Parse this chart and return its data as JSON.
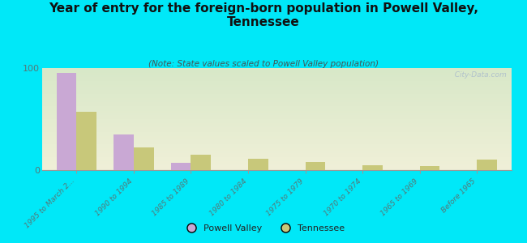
{
  "title": "Year of entry for the foreign-born population in Powell Valley,\nTennessee",
  "subtitle": "(Note: State values scaled to Powell Valley population)",
  "categories": [
    "1995 to March 2...",
    "1990 to 1994",
    "1985 to 1989",
    "1980 to 1984",
    "1975 to 1979",
    "1970 to 1974",
    "1965 to 1969",
    "Before 1965"
  ],
  "powell_valley": [
    95,
    35,
    7,
    0,
    0,
    0,
    0,
    0
  ],
  "tennessee": [
    57,
    22,
    15,
    11,
    8,
    5,
    4,
    10
  ],
  "powell_color": "#c9a8d4",
  "tennessee_color": "#c8c87a",
  "background_color": "#00e8f8",
  "plot_bg_top": "#d8e8c8",
  "plot_bg_bottom": "#f0f0d8",
  "ylim": [
    0,
    100
  ],
  "yticks": [
    0,
    100
  ],
  "bar_width": 0.35,
  "watermark": "  City-Data.com",
  "legend_powell": "Powell Valley",
  "legend_tennessee": "Tennessee",
  "title_fontsize": 11,
  "subtitle_fontsize": 7.5,
  "tick_label_color": "#557777",
  "tick_label_fontsize": 6.5
}
